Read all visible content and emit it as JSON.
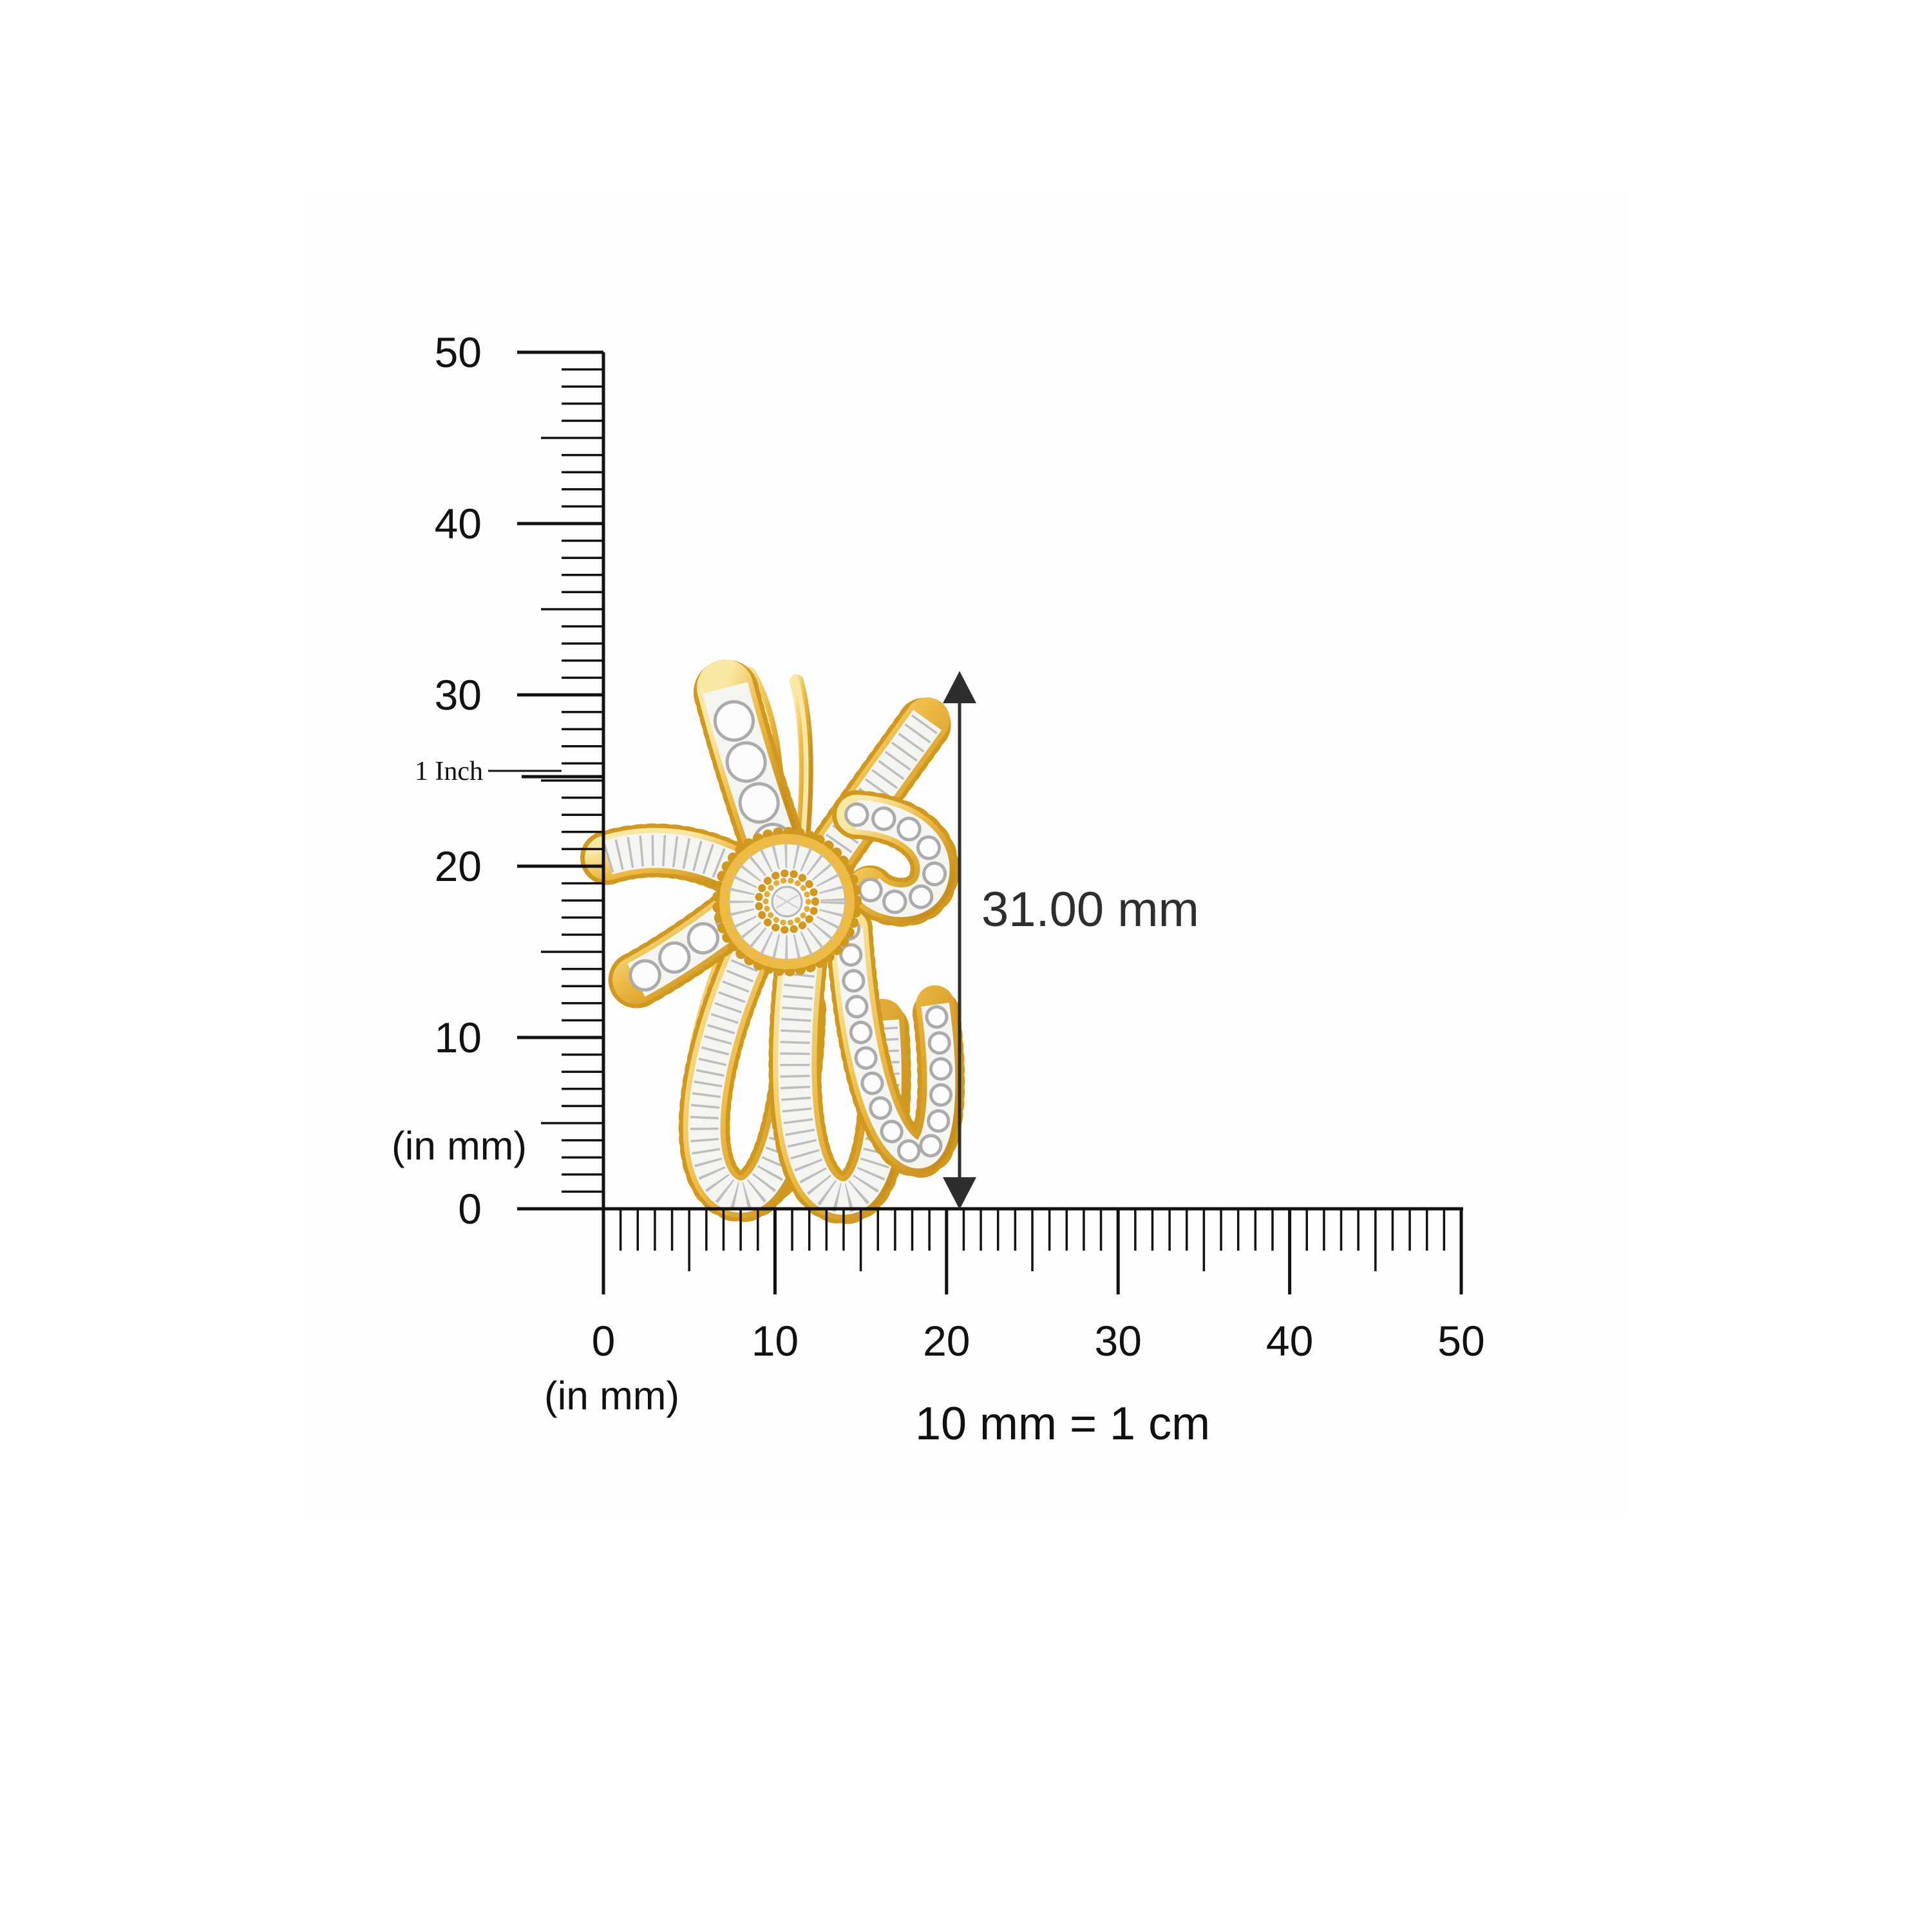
{
  "rulers": {
    "vertical": {
      "unit_label": "(in mm)",
      "inch_label": "1 Inch",
      "labels": [
        "50",
        "40",
        "30",
        "20",
        "10",
        "0"
      ],
      "values": [
        50,
        40,
        30,
        20,
        10,
        0
      ],
      "inch_value_mm": 25.4
    },
    "horizontal": {
      "unit_label": "(in mm)",
      "labels": [
        "0",
        "10",
        "20",
        "30",
        "40",
        "50"
      ],
      "values": [
        0,
        10,
        20,
        30,
        40,
        50
      ]
    }
  },
  "dimension": {
    "label": "31.00 mm",
    "value_mm": 31.0
  },
  "scale_note": "10 mm = 1 cm",
  "jewelry_icon": "diamond-bow-pendant-icon",
  "colors": {
    "ink": "#111111",
    "dimension": "#2E2E2E",
    "photo_bg": "#FDFDFD",
    "gold": "#EDBA45",
    "gold_dark": "#C88F1E",
    "gold_light": "#F9E7A4",
    "gold_bead": "#D0981F",
    "diamond_white": "#F4F4F1",
    "diamond_line": "#BDBDBD",
    "diamond_dot_edge": "#ABABAB",
    "diamond_dot_fill": "#FCFCFC"
  }
}
